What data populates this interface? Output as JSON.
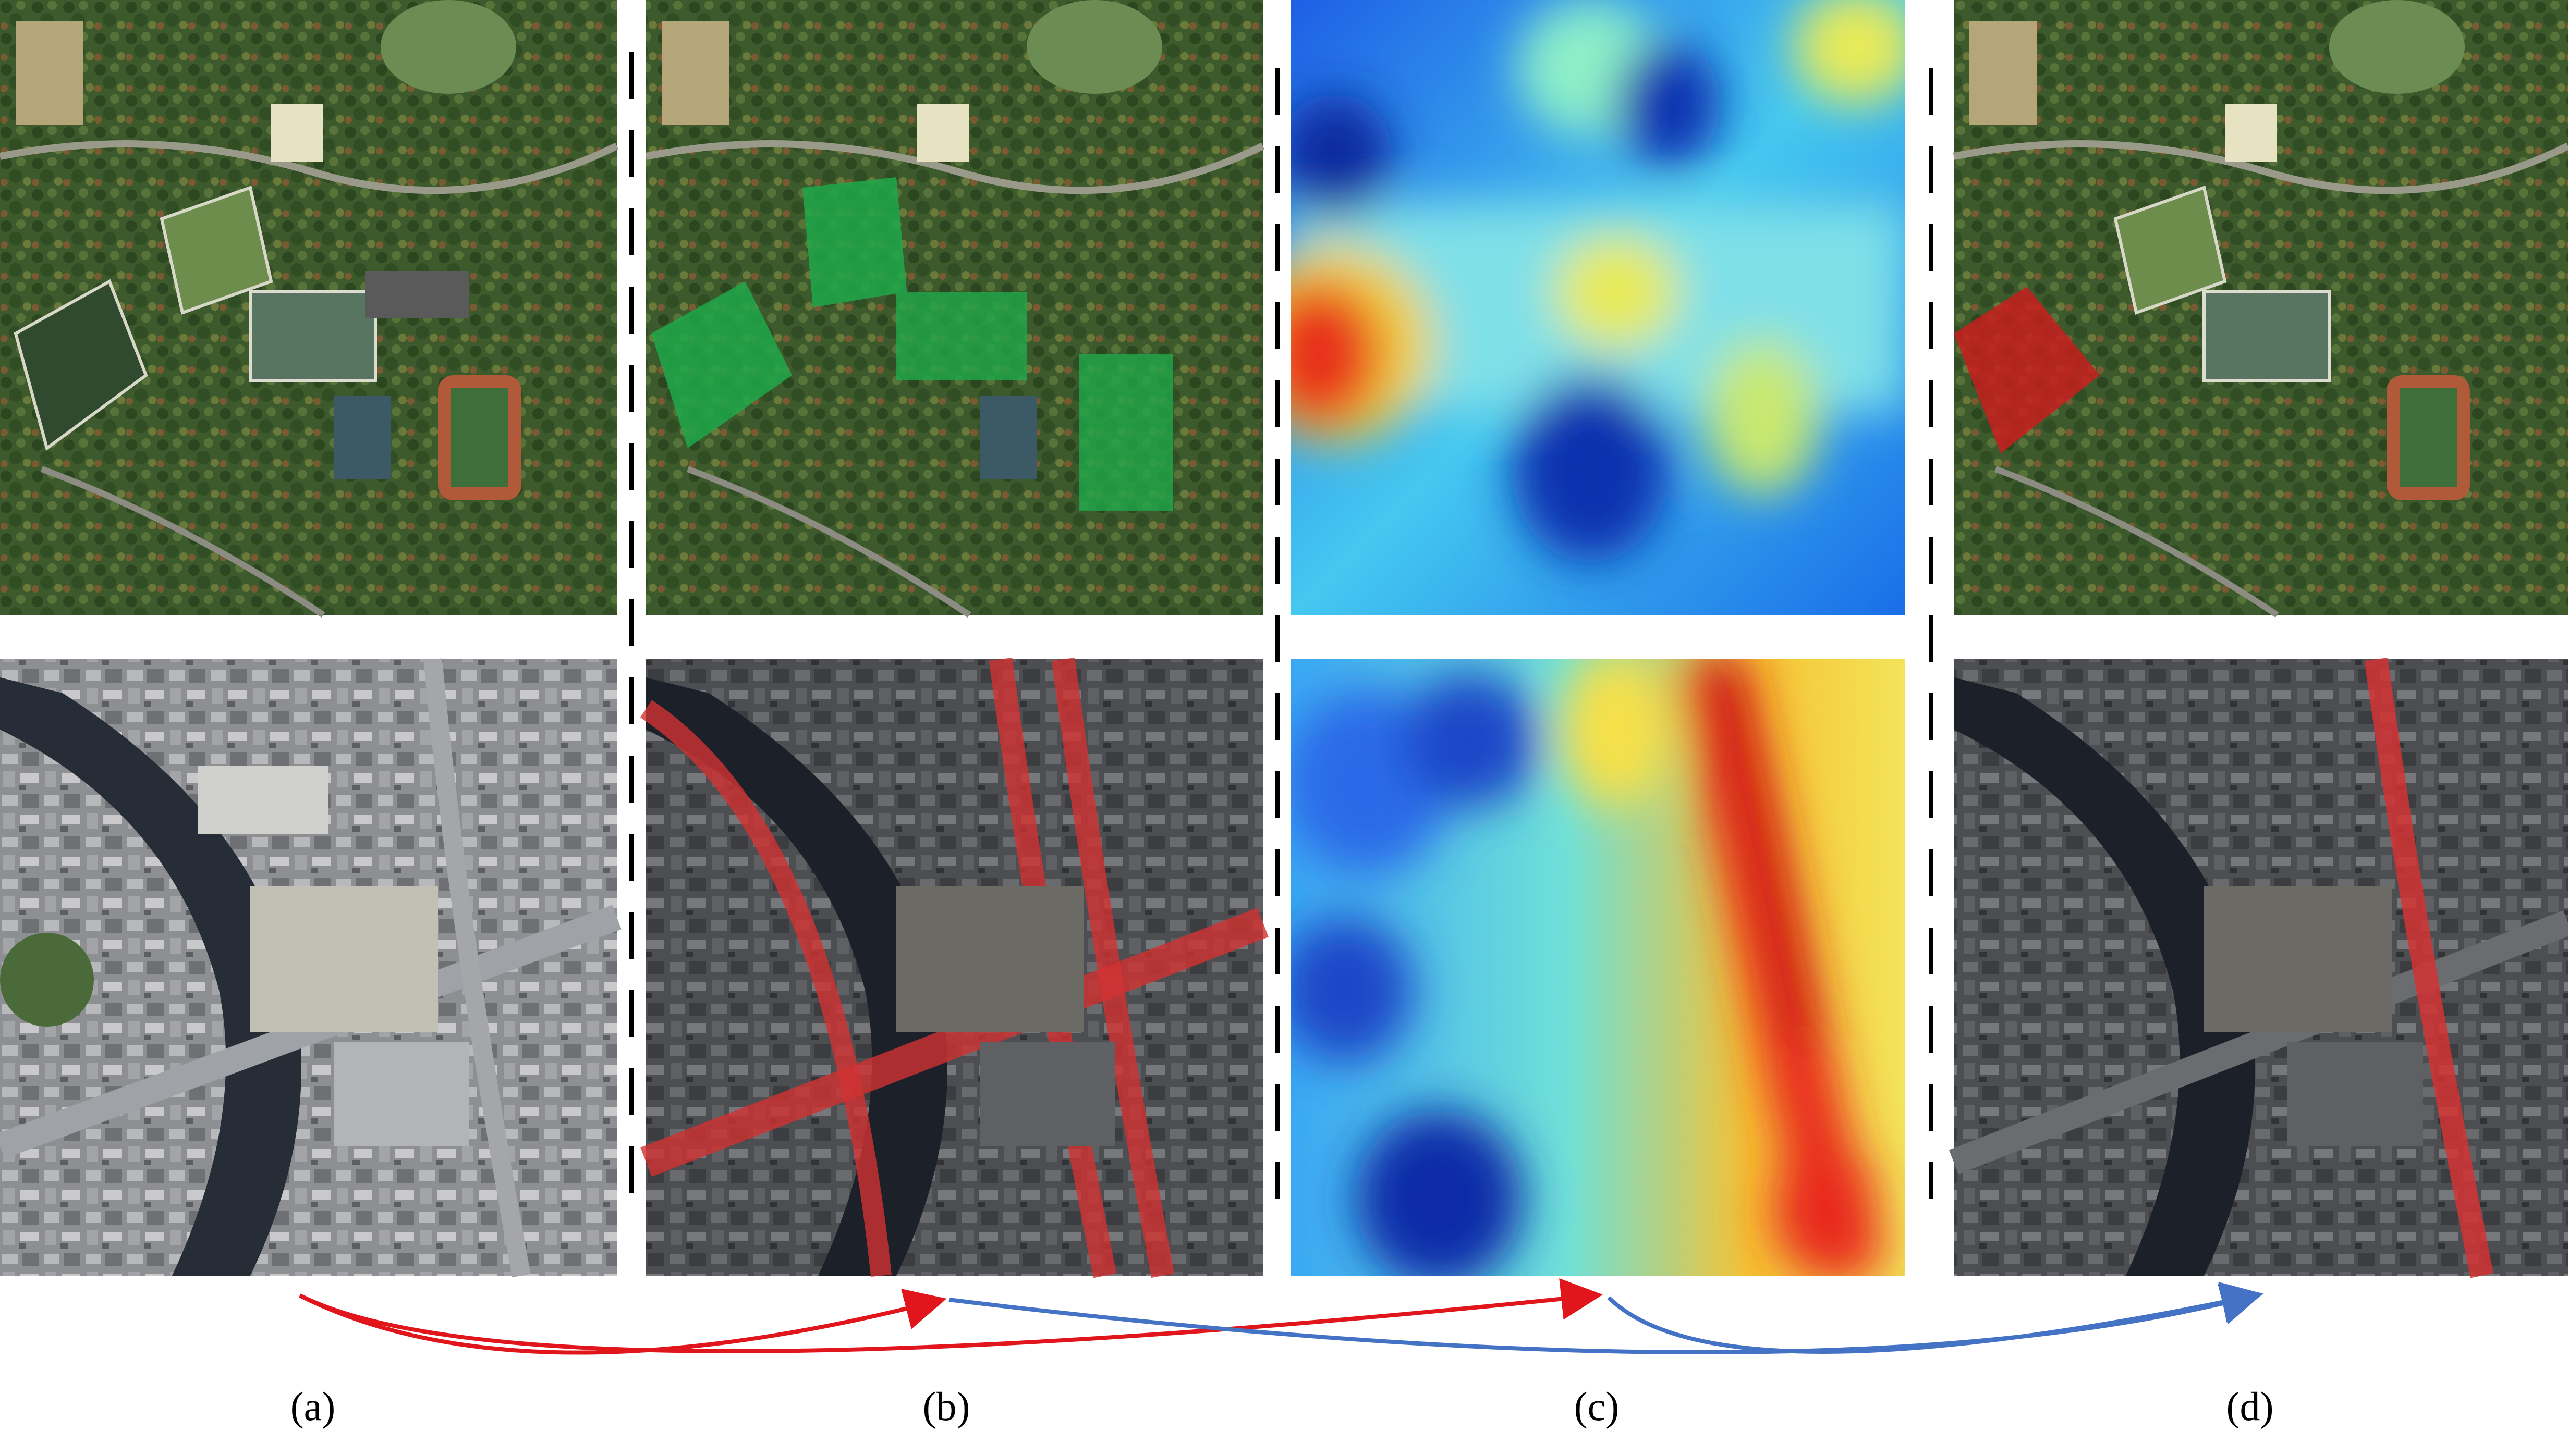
{
  "panels": [
    {
      "id": "a",
      "caption": "(a)",
      "content": "aerial-image"
    },
    {
      "id": "b",
      "caption": "(b)",
      "content": "aerial-image-with-segmentation-overlay"
    },
    {
      "id": "c",
      "caption": "(c)",
      "content": "heatmap"
    },
    {
      "id": "d",
      "caption": "(d)",
      "content": "aerial-image-with-selected-overlay"
    }
  ],
  "rows": [
    {
      "scene": "campus-sports-fields",
      "highlight_color_b": "#1fa84a",
      "highlight_color_d": "#c81e1e"
    },
    {
      "scene": "river-bridge-roads",
      "highlight_color_b": "#d23232",
      "highlight_color_d": "#d23232"
    }
  ],
  "arrows": [
    {
      "from": "a",
      "to": "b",
      "color": "#e0161c"
    },
    {
      "from": "a",
      "to": "c",
      "color": "#e0161c"
    },
    {
      "from": "b",
      "to": "d",
      "color": "#4472c4"
    },
    {
      "from": "c",
      "to": "d",
      "color": "#4472c4"
    }
  ],
  "colors": {
    "separator": "#000000",
    "arrow_red": "#e0161c",
    "arrow_blue": "#4472c4"
  }
}
